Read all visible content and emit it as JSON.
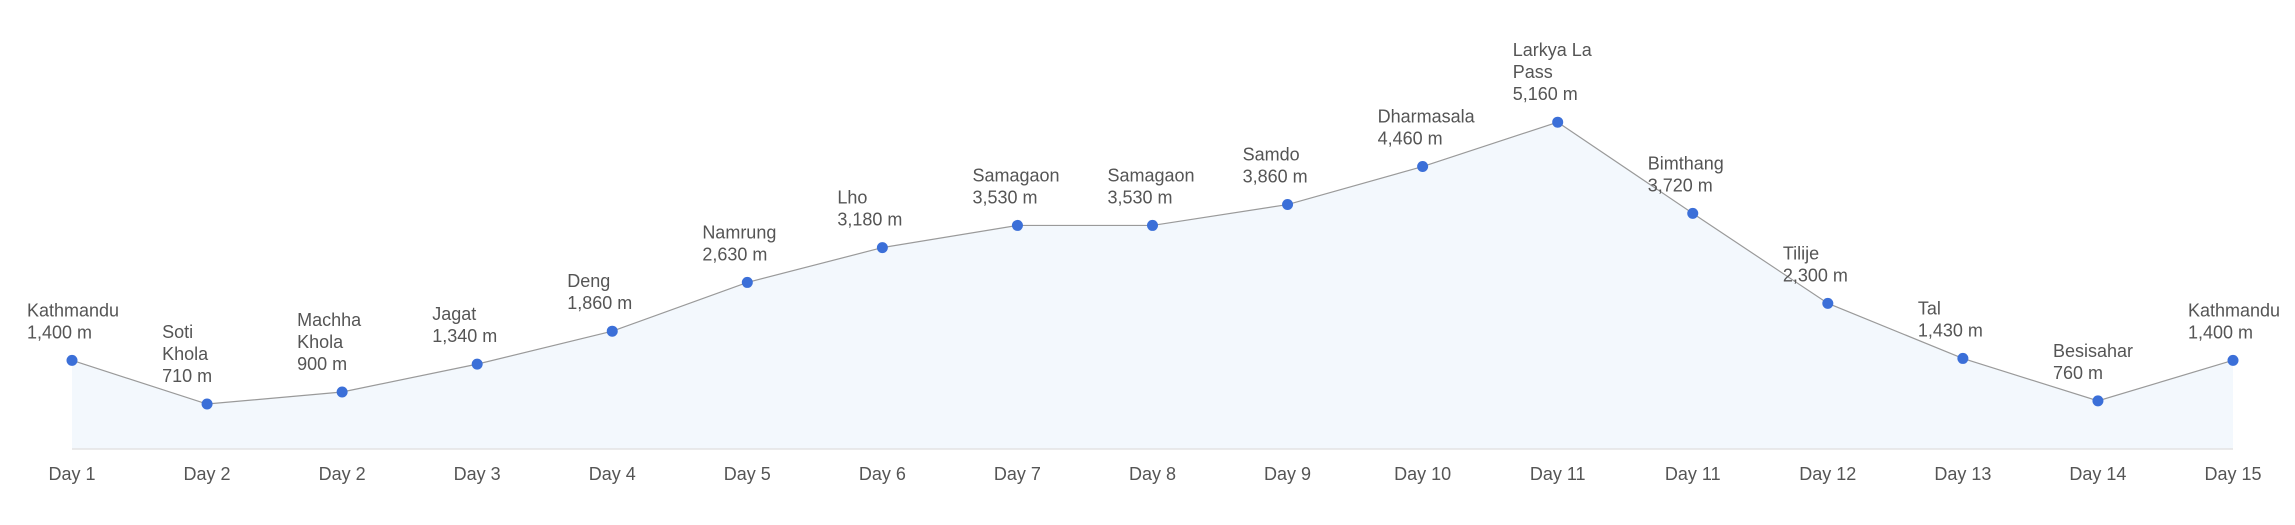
{
  "chart_data": {
    "type": "area",
    "categories": [
      "Day 1",
      "Day 2",
      "Day 2",
      "Day 3",
      "Day 4",
      "Day 5",
      "Day 6",
      "Day 7",
      "Day 8",
      "Day 9",
      "Day 10",
      "Day 11",
      "Day 11",
      "Day 12",
      "Day 13",
      "Day 14",
      "Day 15"
    ],
    "places": [
      "Kathmandu",
      "Soti Khola",
      "Machha Khola",
      "Jagat",
      "Deng",
      "Namrung",
      "Lho",
      "Samagaon",
      "Samagaon",
      "Samdo",
      "Dharmasala",
      "Larkya La Pass",
      "Bimthang",
      "Tilije",
      "Tal",
      "Besisahar",
      "Kathmandu"
    ],
    "values": [
      1400,
      710,
      900,
      1340,
      1860,
      2630,
      3180,
      3530,
      3530,
      3860,
      4460,
      5160,
      3720,
      2300,
      1430,
      760,
      1400
    ],
    "value_labels": [
      "1,400 m",
      "710 m",
      "900 m",
      "1,340 m",
      "1,860 m",
      "2,630 m",
      "3,180 m",
      "3,530 m",
      "3,530 m",
      "3,860 m",
      "4,460 m",
      "5,160 m",
      "3,720 m",
      "2,300 m",
      "1,430 m",
      "760 m",
      "1,400 m"
    ],
    "color": "#3b6fd8",
    "line_color": "#9a9a9a",
    "fill_color": "#f3f8fd",
    "ylim": [
      0,
      6000
    ]
  }
}
